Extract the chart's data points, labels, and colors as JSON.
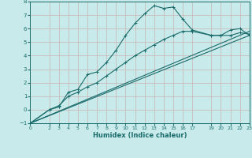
{
  "xlabel": "Humidex (Indice chaleur)",
  "bg_color": "#c8eaea",
  "grid_color": "#c8b4b4",
  "line_color": "#1a6b6b",
  "xlim": [
    0,
    23
  ],
  "ylim": [
    -1,
    8
  ],
  "xticks": [
    0,
    2,
    3,
    4,
    5,
    6,
    7,
    8,
    9,
    10,
    11,
    12,
    13,
    14,
    15,
    16,
    17,
    19,
    20,
    21,
    22,
    23
  ],
  "yticks": [
    -1,
    0,
    1,
    2,
    3,
    4,
    5,
    6,
    7,
    8
  ],
  "curve1_x": [
    0,
    2,
    3,
    4,
    5,
    6,
    7,
    8,
    9,
    10,
    11,
    12,
    13,
    14,
    15,
    16,
    17,
    19,
    20,
    21,
    22,
    23
  ],
  "curve1_y": [
    -1,
    0.0,
    0.2,
    1.3,
    1.5,
    2.6,
    2.8,
    3.5,
    4.4,
    5.5,
    6.4,
    7.1,
    7.7,
    7.5,
    7.6,
    6.7,
    5.9,
    5.5,
    5.5,
    5.9,
    6.0,
    5.5
  ],
  "curve2_x": [
    0,
    2,
    3,
    4,
    5,
    6,
    7,
    8,
    9,
    10,
    11,
    12,
    13,
    14,
    15,
    16,
    17,
    19,
    20,
    21,
    22,
    23
  ],
  "curve2_y": [
    -1,
    0.0,
    0.3,
    1.0,
    1.3,
    1.7,
    2.0,
    2.5,
    3.0,
    3.5,
    4.0,
    4.4,
    4.8,
    5.2,
    5.5,
    5.8,
    5.8,
    5.5,
    5.5,
    5.5,
    5.7,
    5.6
  ],
  "curve3_x": [
    0,
    23
  ],
  "curve3_y": [
    -1,
    5.5
  ],
  "curve4_x": [
    0,
    23
  ],
  "curve4_y": [
    -1,
    5.8
  ]
}
